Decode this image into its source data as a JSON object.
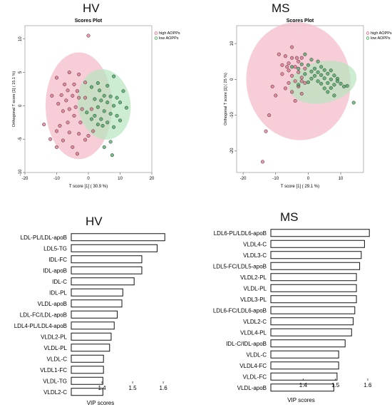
{
  "panel_titles": {
    "hv": "HV",
    "ms": "MS"
  },
  "vip_titles": {
    "hv": "HV",
    "ms": "MS"
  },
  "colors": {
    "high": "#e0607e",
    "low": "#2e9e4e",
    "high_fill": "#f4b8c8",
    "low_fill": "#b7e6bf",
    "bar_stroke": "#111111"
  },
  "chart_data": [
    {
      "type": "scatter",
      "id": "hv-scores",
      "title": "Scores Plot",
      "xlabel": "T score [1] ( 30.9 %)",
      "ylabel": "Orthogonal T score [1] ( 15.1 %)",
      "xlim": [
        -20,
        20
      ],
      "ylim": [
        -10,
        12
      ],
      "xticks": [
        -20,
        -10,
        0,
        10,
        20
      ],
      "yticks": [
        -10,
        -5,
        0,
        5,
        10
      ],
      "legend_position": "top-right",
      "ellipses": [
        {
          "group": "high",
          "cx": -3,
          "cy": 0,
          "rx": 10.5,
          "ry": 8,
          "rotation": 0
        },
        {
          "group": "low",
          "cx": 5,
          "cy": 0.2,
          "rx": 8.3,
          "ry": 5.3,
          "rotation": -8
        }
      ],
      "series": [
        {
          "name": "high AOPPs",
          "group": "high",
          "points": [
            [
              0,
              10.5
            ],
            [
              -3,
              4.7
            ],
            [
              -6,
              5
            ],
            [
              -10,
              4.2
            ],
            [
              -7.5,
              3.2
            ],
            [
              -4.5,
              3.2
            ],
            [
              -1,
              3.5
            ],
            [
              -6.5,
              2.3
            ],
            [
              -3.5,
              2.2
            ],
            [
              -5,
              1.5
            ],
            [
              -11.5,
              1.5
            ],
            [
              -8.5,
              1.6
            ],
            [
              -3,
              1.2
            ],
            [
              -7,
              0.8
            ],
            [
              -1,
              1.2
            ],
            [
              -9.5,
              0.3
            ],
            [
              -4,
              -0.2
            ],
            [
              -6,
              -0.5
            ],
            [
              -2,
              -0.5
            ],
            [
              -8,
              -0.8
            ],
            [
              1,
              -0.5
            ],
            [
              -4.5,
              -1.5
            ],
            [
              -2.5,
              -2.5
            ],
            [
              -6.5,
              -2.5
            ],
            [
              -9,
              -3
            ],
            [
              -14,
              -2.8
            ],
            [
              -10,
              -3.8
            ],
            [
              -3,
              -4.2
            ],
            [
              -1,
              -5.1
            ],
            [
              -12,
              -5
            ],
            [
              -8,
              -5.2
            ],
            [
              -5,
              -6.2
            ],
            [
              -10,
              -6.2
            ],
            [
              -3.5,
              -7.2
            ],
            [
              0,
              -4.5
            ],
            [
              1.5,
              -3.8
            ],
            [
              -6,
              -4
            ]
          ]
        },
        {
          "name": "low AOPPs",
          "group": "low",
          "points": [
            [
              8,
              4.4
            ],
            [
              3,
              3.4
            ],
            [
              6,
              3
            ],
            [
              1,
              2.8
            ],
            [
              11,
              2.2
            ],
            [
              3.5,
              2.3
            ],
            [
              5,
              1.5
            ],
            [
              7,
              1.4
            ],
            [
              9,
              1.2
            ],
            [
              2,
              1
            ],
            [
              4,
              0.8
            ],
            [
              6,
              0.5
            ],
            [
              10,
              0.5
            ],
            [
              8,
              0
            ],
            [
              3,
              -0.2
            ],
            [
              12,
              -0.3
            ],
            [
              5,
              -0.8
            ],
            [
              7,
              -1.2
            ],
            [
              9,
              -1.5
            ],
            [
              2,
              -1.5
            ],
            [
              4,
              -2
            ],
            [
              6,
              -2.5
            ],
            [
              10,
              -2.2
            ],
            [
              3,
              -2.8
            ],
            [
              8,
              -3.2
            ],
            [
              4.5,
              -3
            ],
            [
              7,
              -5.4
            ],
            [
              5,
              -6.2
            ],
            [
              7.5,
              -7.4
            ],
            [
              -0.5,
              -1
            ],
            [
              1,
              -2
            ]
          ]
        }
      ]
    },
    {
      "type": "scatter",
      "id": "ms-scores",
      "title": "Scores Plot",
      "xlabel": "T score [1] ( 29.1 %)",
      "ylabel": "Orthogonal T score [1] ( 25 %)",
      "xlim": [
        -22,
        17
      ],
      "ylim": [
        -26,
        15
      ],
      "xticks": [
        -20,
        -10,
        0,
        10
      ],
      "yticks": [
        -20,
        -10,
        0,
        10
      ],
      "legend_position": "top-right",
      "ellipses": [
        {
          "group": "high",
          "cx": -3,
          "cy": -0.5,
          "rx": 16,
          "ry": 16.5,
          "rotation": -8
        },
        {
          "group": "low",
          "cx": 4.5,
          "cy": -0.8,
          "rx": 10.5,
          "ry": 5.8,
          "rotation": -12
        }
      ],
      "series": [
        {
          "name": "high AOPPs",
          "group": "high",
          "points": [
            [
              -5,
              9
            ],
            [
              -9,
              7
            ],
            [
              -7,
              6.5
            ],
            [
              -5,
              6
            ],
            [
              -2,
              6
            ],
            [
              -3,
              5
            ],
            [
              -6,
              4.5
            ],
            [
              -8,
              4
            ],
            [
              -4,
              3.5
            ],
            [
              -1,
              3
            ],
            [
              -6,
              2.5
            ],
            [
              -3,
              2
            ],
            [
              -8,
              1.5
            ],
            [
              -5,
              1
            ],
            [
              -2,
              0.5
            ],
            [
              -4,
              -0.5
            ],
            [
              -6,
              -1
            ],
            [
              -1,
              -1
            ],
            [
              -3,
              -2
            ],
            [
              -11,
              -2
            ],
            [
              -7,
              -2.5
            ],
            [
              -5,
              -3.5
            ],
            [
              -2,
              -4
            ],
            [
              -10,
              -4.5
            ],
            [
              -4,
              -6
            ],
            [
              -12,
              -10
            ],
            [
              -13,
              -14.5
            ],
            [
              -14,
              -23
            ],
            [
              -2,
              -0.5
            ],
            [
              -6.5,
              3.5
            ],
            [
              -3.5,
              6
            ]
          ]
        },
        {
          "name": "low AOPPs",
          "group": "low",
          "points": [
            [
              -1,
              7
            ],
            [
              1,
              5.5
            ],
            [
              3,
              5
            ],
            [
              -2,
              4.2
            ],
            [
              0,
              4
            ],
            [
              4,
              3.5
            ],
            [
              -3,
              3
            ],
            [
              2,
              3
            ],
            [
              5,
              2.6
            ],
            [
              7,
              2.5
            ],
            [
              1,
              2.2
            ],
            [
              3,
              2
            ],
            [
              6,
              1.6
            ],
            [
              -1,
              1.5
            ],
            [
              2,
              1
            ],
            [
              4,
              1.2
            ],
            [
              8,
              1.1
            ],
            [
              1,
              0.2
            ],
            [
              5,
              0.3
            ],
            [
              7,
              0
            ],
            [
              9,
              0.2
            ],
            [
              3,
              -0.5
            ],
            [
              6,
              -1
            ],
            [
              8,
              -1.5
            ],
            [
              10,
              -1.2
            ],
            [
              4,
              -1.2
            ],
            [
              7,
              -2.4
            ],
            [
              11,
              -2
            ],
            [
              6,
              -3.5
            ],
            [
              8,
              -4.5
            ],
            [
              14,
              -6.5
            ],
            [
              0,
              -0.8
            ],
            [
              -3,
              -1.5
            ],
            [
              -5,
              3.5
            ],
            [
              9,
              -0.5
            ],
            [
              12,
              -1.8
            ],
            [
              5,
              -2.5
            ]
          ]
        }
      ]
    },
    {
      "type": "bar",
      "id": "hv-vip",
      "orientation": "horizontal",
      "title": "HV",
      "xlabel": "VIP scores",
      "xlim": [
        1.3,
        1.63
      ],
      "xticks": [
        1.4,
        1.5,
        1.6
      ],
      "categories": [
        "LDL-PL/LDL-apoB",
        "LDL5-TG",
        "IDL-FC",
        "IDL-apoB",
        "IDL-C",
        "IDL-PL",
        "VLDL-apoB",
        "LDL-FC/LDL-apoB",
        "LDL4-PL/LDL4-apoB",
        "VLDL2-PL",
        "VLDL-PL",
        "VLDL-C",
        "VLDL1-FC",
        "VLDL-TG",
        "VLDL2-C"
      ],
      "values": [
        1.605,
        1.58,
        1.53,
        1.53,
        1.505,
        1.468,
        1.465,
        1.45,
        1.44,
        1.43,
        1.425,
        1.405,
        1.405,
        1.403,
        1.403
      ]
    },
    {
      "type": "bar",
      "id": "ms-vip",
      "orientation": "horizontal",
      "title": "MS",
      "xlabel": "VIP scores",
      "xlim": [
        1.3,
        1.62
      ],
      "xticks": [
        1.4,
        1.5,
        1.6
      ],
      "categories": [
        "LDL6-PL/LDL6-apoB",
        "VLDL4-C",
        "VLDL3-C",
        "LDL5-FC/LDL5-apoB",
        "VLDL2-PL",
        "VLDL-PL",
        "VLDL3-PL",
        "LDL6-FC/LDL6-apoB",
        "VLDL2-C",
        "VLDL4-PL",
        "IDL-C/IDL-apoB",
        "VLDL-C",
        "VLDL4-FC",
        "VLDL-FC",
        "VLDL-apoB"
      ],
      "values": [
        1.605,
        1.59,
        1.58,
        1.575,
        1.565,
        1.565,
        1.565,
        1.56,
        1.555,
        1.55,
        1.53,
        1.51,
        1.51,
        1.505,
        1.495
      ]
    }
  ]
}
